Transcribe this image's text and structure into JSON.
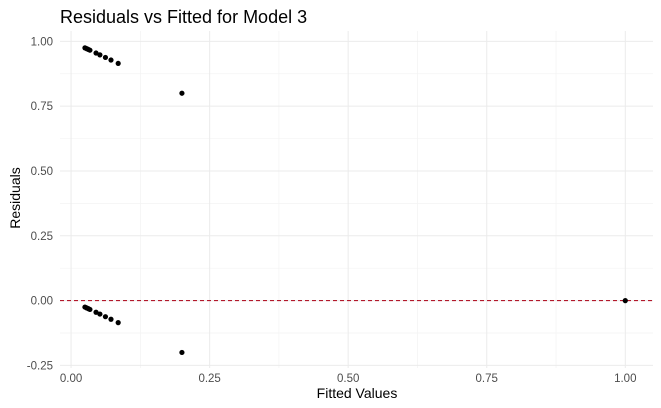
{
  "chart_data": {
    "type": "scatter",
    "title": "Residuals vs Fitted for Model 3",
    "xlabel": "Fitted Values",
    "ylabel": "Residuals",
    "xlim": [
      -0.02,
      1.05
    ],
    "ylim": [
      -0.26,
      1.04
    ],
    "x_ticks": [
      0.0,
      0.25,
      0.5,
      0.75,
      1.0
    ],
    "x_tick_labels": [
      "0.00",
      "0.25",
      "0.50",
      "0.75",
      "1.00"
    ],
    "y_ticks": [
      -0.25,
      0.0,
      0.25,
      0.5,
      0.75,
      1.0
    ],
    "y_tick_labels": [
      "-0.25",
      "0.00",
      "0.25",
      "0.50",
      "0.75",
      "1.00"
    ],
    "grid": true,
    "reference_line": {
      "y": 0,
      "style": "dashed",
      "color": "#b2182b"
    },
    "point_color": "#000000",
    "points": [
      {
        "x": 0.025,
        "y": 0.975
      },
      {
        "x": 0.028,
        "y": 0.972
      },
      {
        "x": 0.031,
        "y": 0.969
      },
      {
        "x": 0.034,
        "y": 0.966
      },
      {
        "x": 0.045,
        "y": 0.955
      },
      {
        "x": 0.052,
        "y": 0.948
      },
      {
        "x": 0.062,
        "y": 0.938
      },
      {
        "x": 0.072,
        "y": 0.928
      },
      {
        "x": 0.085,
        "y": 0.915
      },
      {
        "x": 0.2,
        "y": 0.8
      },
      {
        "x": 0.025,
        "y": -0.025
      },
      {
        "x": 0.028,
        "y": -0.028
      },
      {
        "x": 0.031,
        "y": -0.031
      },
      {
        "x": 0.034,
        "y": -0.034
      },
      {
        "x": 0.045,
        "y": -0.045
      },
      {
        "x": 0.052,
        "y": -0.052
      },
      {
        "x": 0.062,
        "y": -0.062
      },
      {
        "x": 0.072,
        "y": -0.072
      },
      {
        "x": 0.085,
        "y": -0.085
      },
      {
        "x": 0.2,
        "y": -0.2
      },
      {
        "x": 1.0,
        "y": 0.0
      }
    ]
  }
}
